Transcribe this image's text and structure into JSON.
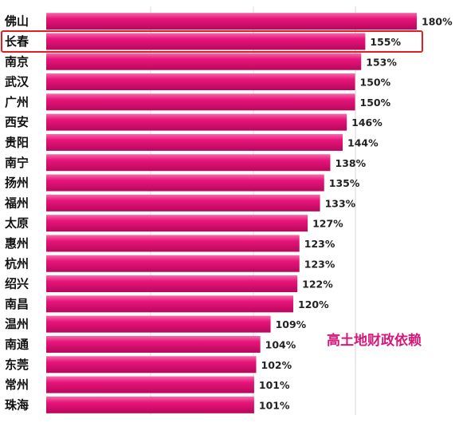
{
  "chart_data": {
    "type": "bar",
    "orientation": "horizontal",
    "categories": [
      "佛山",
      "长春",
      "南京",
      "武汉",
      "广州",
      "西安",
      "贵阳",
      "南宁",
      "扬州",
      "福州",
      "太原",
      "惠州",
      "杭州",
      "绍兴",
      "南昌",
      "温州",
      "南通",
      "东莞",
      "常州",
      "珠海"
    ],
    "values": [
      180,
      155,
      153,
      150,
      150,
      146,
      144,
      138,
      135,
      133,
      127,
      123,
      123,
      122,
      120,
      109,
      104,
      102,
      101,
      101
    ],
    "value_labels": [
      "180%",
      "155%",
      "153%",
      "150%",
      "150%",
      "146%",
      "144%",
      "138%",
      "135%",
      "133%",
      "127%",
      "123%",
      "123%",
      "122%",
      "120%",
      "109%",
      "104%",
      "102%",
      "101%",
      "101%"
    ],
    "unit": "%",
    "xlim": [
      0,
      180
    ],
    "grid": true,
    "highlighted_category": "长春",
    "annotation": "高土地财政依赖",
    "colors": {
      "bar": "#e8157a",
      "bar_light": "#f04a9a",
      "bar_dark": "#b8085c",
      "highlight_box": "#e02020",
      "annotation": "#d6187a"
    }
  }
}
